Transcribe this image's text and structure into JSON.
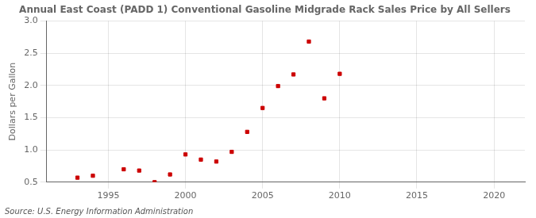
{
  "chart_data": {
    "type": "scatter",
    "title": "Annual East Coast (PADD 1) Conventional Gasoline Midgrade Rack Sales Price by All Sellers",
    "y_label": "Dollars per Gallon",
    "annotations": [
      "Source: U.S. Energy Information Administration"
    ],
    "x": [
      1993,
      1994,
      1996,
      1997,
      1998,
      1999,
      2000,
      2001,
      2002,
      2003,
      2004,
      2005,
      2006,
      2007,
      2008,
      2009,
      2010
    ],
    "values": [
      0.57,
      0.6,
      0.7,
      0.68,
      0.5,
      0.62,
      0.93,
      0.85,
      0.82,
      0.97,
      1.28,
      1.65,
      1.99,
      2.17,
      2.68,
      1.8,
      2.18
    ],
    "color": "#cc0000",
    "marker": "square",
    "xlim": [
      1991,
      2022
    ],
    "xticks": [
      1995,
      2000,
      2005,
      2010,
      2015,
      2020
    ],
    "ylim": [
      0.5,
      3.0
    ],
    "yticks": [
      0.5,
      {
        "value": 1,
        "label": "1.0"
      },
      1.5,
      {
        "value": 2,
        "label": "2.0"
      },
      2.5,
      {
        "value": 3,
        "label": "3.0"
      }
    ],
    "grid": true
  }
}
